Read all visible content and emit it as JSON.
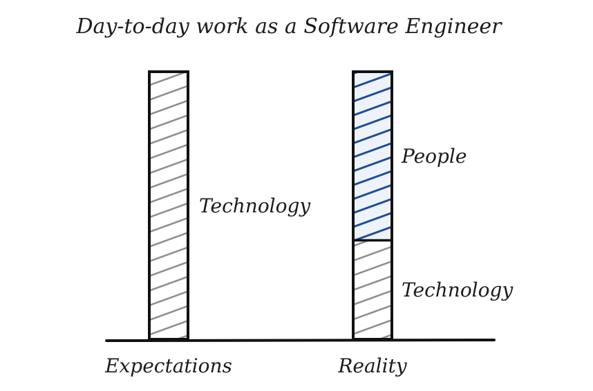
{
  "chart_data": {
    "type": "bar",
    "stacked": true,
    "title": "Day-to-day work as a Software Engineer",
    "categories": [
      "Expectations",
      "Reality"
    ],
    "series": [
      {
        "name": "Technology",
        "values": [
          100,
          37
        ],
        "color": "#8a8a8a"
      },
      {
        "name": "People",
        "values": [
          0,
          63
        ],
        "color": "#2f5597"
      }
    ],
    "ylim": [
      0,
      100
    ],
    "grid": false,
    "legend": "none"
  }
}
